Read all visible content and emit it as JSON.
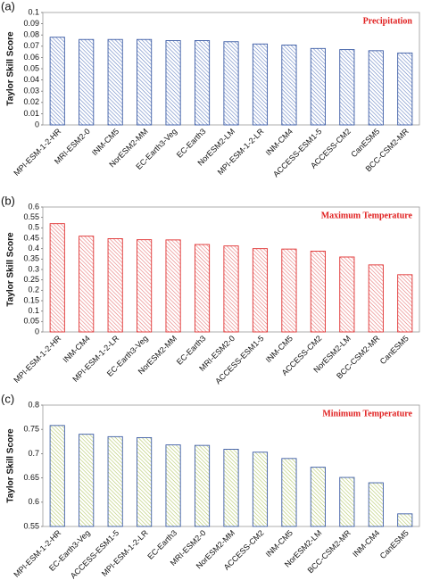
{
  "chart_data": [
    {
      "type": "bar",
      "panel_label": "(a)",
      "title": "Precipitation",
      "y_label": "Taylor Skill Score",
      "categories": [
        "MPI-ESM-1-2-HR",
        "MRI-ESM2-0",
        "INM-CM5",
        "NorESM2-MM",
        "EC-Earth3-Veg",
        "EC-Earth3",
        "NorESM2-LM",
        "MPI-ESM-1-2-LR",
        "INM-CM4",
        "ACCESS-ESM1-5",
        "ACCESS-CM2",
        "CanESM5",
        "BCC-CSM2-MR"
      ],
      "values": [
        0.078,
        0.076,
        0.076,
        0.076,
        0.075,
        0.075,
        0.074,
        0.072,
        0.071,
        0.068,
        0.067,
        0.066,
        0.064
      ],
      "color": "#3b5ba5",
      "hatch_color": "#6a86c4",
      "title_color": "#e02020",
      "ylim": [
        0,
        0.1
      ],
      "yticks": [
        0,
        0.01,
        0.02,
        0.03,
        0.04,
        0.05,
        0.06,
        0.07,
        0.08,
        0.09,
        0.1
      ]
    },
    {
      "type": "bar",
      "panel_label": "(b)",
      "title": "Maximum Temperature",
      "y_label": "Taylor Skill Score",
      "categories": [
        "MPI-ESM-1-2-HR",
        "INM-CM4",
        "MPI-ESM-1-2-LR",
        "EC-Earth3-Veg",
        "NorESM2-MM",
        "EC-Earth3",
        "MRI-ESM2-0",
        "ACCESS-ESM1-5",
        "INM-CM5",
        "ACCESS-CM2",
        "NorESM2-LM",
        "BCC-CSM2-MR",
        "CanESM5"
      ],
      "values": [
        0.52,
        0.46,
        0.448,
        0.443,
        0.442,
        0.42,
        0.413,
        0.4,
        0.398,
        0.388,
        0.36,
        0.322,
        0.275
      ],
      "color": "#e03030",
      "hatch_color": "#e87a7a",
      "title_color": "#e02020",
      "ylim": [
        0,
        0.6
      ],
      "yticks": [
        0,
        0.05,
        0.1,
        0.15,
        0.2,
        0.25,
        0.3,
        0.35,
        0.4,
        0.45,
        0.5,
        0.55,
        0.6
      ]
    },
    {
      "type": "bar",
      "panel_label": "(c)",
      "title": "Minimum Temperature",
      "y_label": "Taylor Skill Score",
      "categories": [
        "MPI-ESM-1-2-HR",
        "EC-Earth3-Veg",
        "ACCESS-ESM1-5",
        "MPI-ESM-1-2-LR",
        "EC-Earth3",
        "MRI-ESM2-0",
        "NorESM2-MM",
        "ACCESS-CM2",
        "INM-CM5",
        "NorESM2-LM",
        "BCC-CSM2-MR",
        "INM-CM4",
        "CanESM5"
      ],
      "values": [
        0.758,
        0.74,
        0.735,
        0.733,
        0.718,
        0.717,
        0.709,
        0.703,
        0.69,
        0.672,
        0.651,
        0.64,
        0.576
      ],
      "color": "#3b5ba5",
      "hatch_color": "#b5c96a",
      "title_color": "#e02020",
      "ylim": [
        0.55,
        0.8
      ],
      "yticks": [
        0.55,
        0.6,
        0.65,
        0.7,
        0.75,
        0.8
      ]
    }
  ]
}
